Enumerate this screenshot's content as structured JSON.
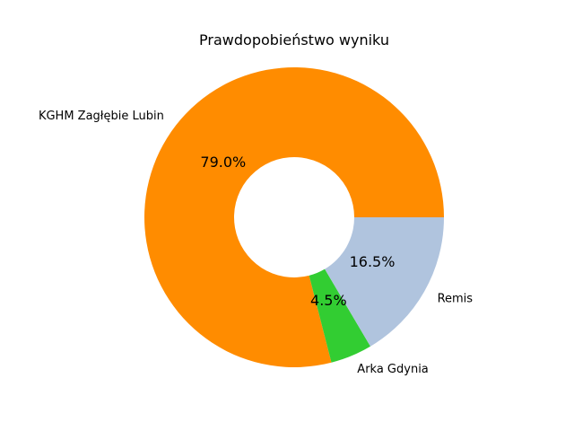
{
  "chart_data": {
    "type": "pie",
    "title": "Prawdopobieństwo wyniku",
    "donut": true,
    "start_angle": "east",
    "direction": "counterclockwise",
    "categories": [
      "KGHM Zagłębie Lubin",
      "Arka Gdynia",
      "Remis"
    ],
    "values": [
      79.0,
      4.5,
      16.5
    ],
    "percent_labels": [
      "79.0%",
      "4.5%",
      "16.5%"
    ],
    "colors": [
      "#ff8c00",
      "#32cd32",
      "#b0c4de"
    ]
  }
}
